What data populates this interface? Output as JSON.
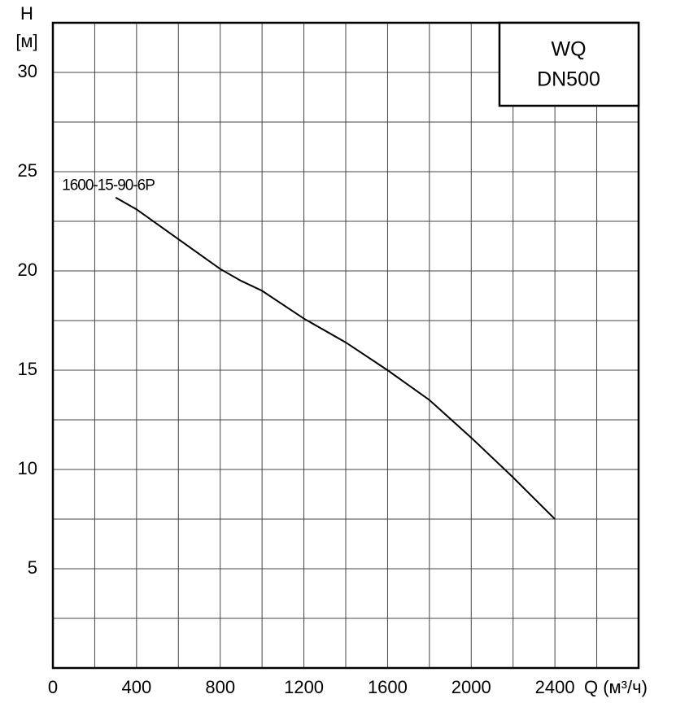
{
  "chart_data": {
    "type": "line",
    "y_label_symbol": "H",
    "y_label_unit": "[м]",
    "x_label": "Q (м³/ч)",
    "box_lines": [
      "WQ",
      "DN500"
    ],
    "x": [
      300,
      400,
      600,
      800,
      900,
      1000,
      1200,
      1400,
      1600,
      1800,
      2000,
      2200,
      2400
    ],
    "series": [
      {
        "name": "1600-15-90-6P",
        "color": "#000000",
        "values": [
          23.7,
          23.1,
          21.6,
          20.1,
          19.5,
          19.0,
          17.6,
          16.4,
          15.0,
          13.5,
          11.6,
          9.6,
          7.5
        ]
      }
    ],
    "xlim": [
      0,
      2800
    ],
    "ylim": [
      0,
      32.5
    ],
    "xticks": [
      0,
      400,
      800,
      1200,
      1600,
      2000,
      2400
    ],
    "yticks": [
      5,
      10,
      15,
      20,
      25,
      30
    ],
    "xgrid": [
      200,
      400,
      600,
      800,
      1000,
      1200,
      1400,
      1600,
      1800,
      2000,
      2200,
      2400,
      2600
    ],
    "ygrid": [
      2.5,
      5,
      7.5,
      10,
      12.5,
      15,
      17.5,
      20,
      22.5,
      25,
      27.5,
      30
    ],
    "grid": true
  }
}
